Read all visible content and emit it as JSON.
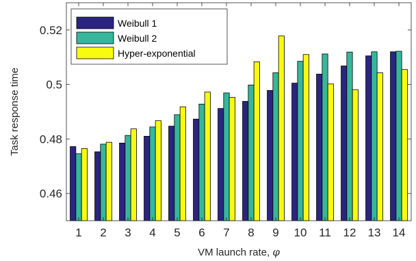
{
  "chart_data": {
    "type": "bar",
    "title": "",
    "xlabel": "VM launch rate, ",
    "xlabel_symbol": "φ",
    "ylabel": "Task response time",
    "categories": [
      "1",
      "2",
      "3",
      "4",
      "5",
      "6",
      "7",
      "8",
      "9",
      "10",
      "11",
      "12",
      "13",
      "14"
    ],
    "ylim": [
      0.45,
      0.53
    ],
    "yticks": [
      0.46,
      0.48,
      0.5,
      0.52
    ],
    "ytick_labels": [
      "0.46",
      "0.48",
      "0.5",
      "0.52"
    ],
    "grid": false,
    "box": true,
    "legend_position": "top-left",
    "series": [
      {
        "name": "Weibull 1",
        "color": "#2b2580",
        "values": [
          0.4772,
          0.4753,
          0.4785,
          0.481,
          0.4847,
          0.4873,
          0.4912,
          0.4938,
          0.4978,
          0.5005,
          0.5038,
          0.5068,
          0.5105,
          0.512
        ]
      },
      {
        "name": "Weibull 2",
        "color": "#36b79c",
        "values": [
          0.4746,
          0.4781,
          0.4813,
          0.4844,
          0.4889,
          0.4928,
          0.4969,
          0.4998,
          0.5043,
          0.5085,
          0.5112,
          0.5119,
          0.512,
          0.5122
        ]
      },
      {
        "name": "Hyper-exponential",
        "color": "#f9fb0e",
        "values": [
          0.4765,
          0.4788,
          0.4837,
          0.4867,
          0.4918,
          0.4972,
          0.4953,
          0.5083,
          0.5178,
          0.511,
          0.5002,
          0.4981,
          0.5043,
          0.5055
        ]
      }
    ]
  }
}
